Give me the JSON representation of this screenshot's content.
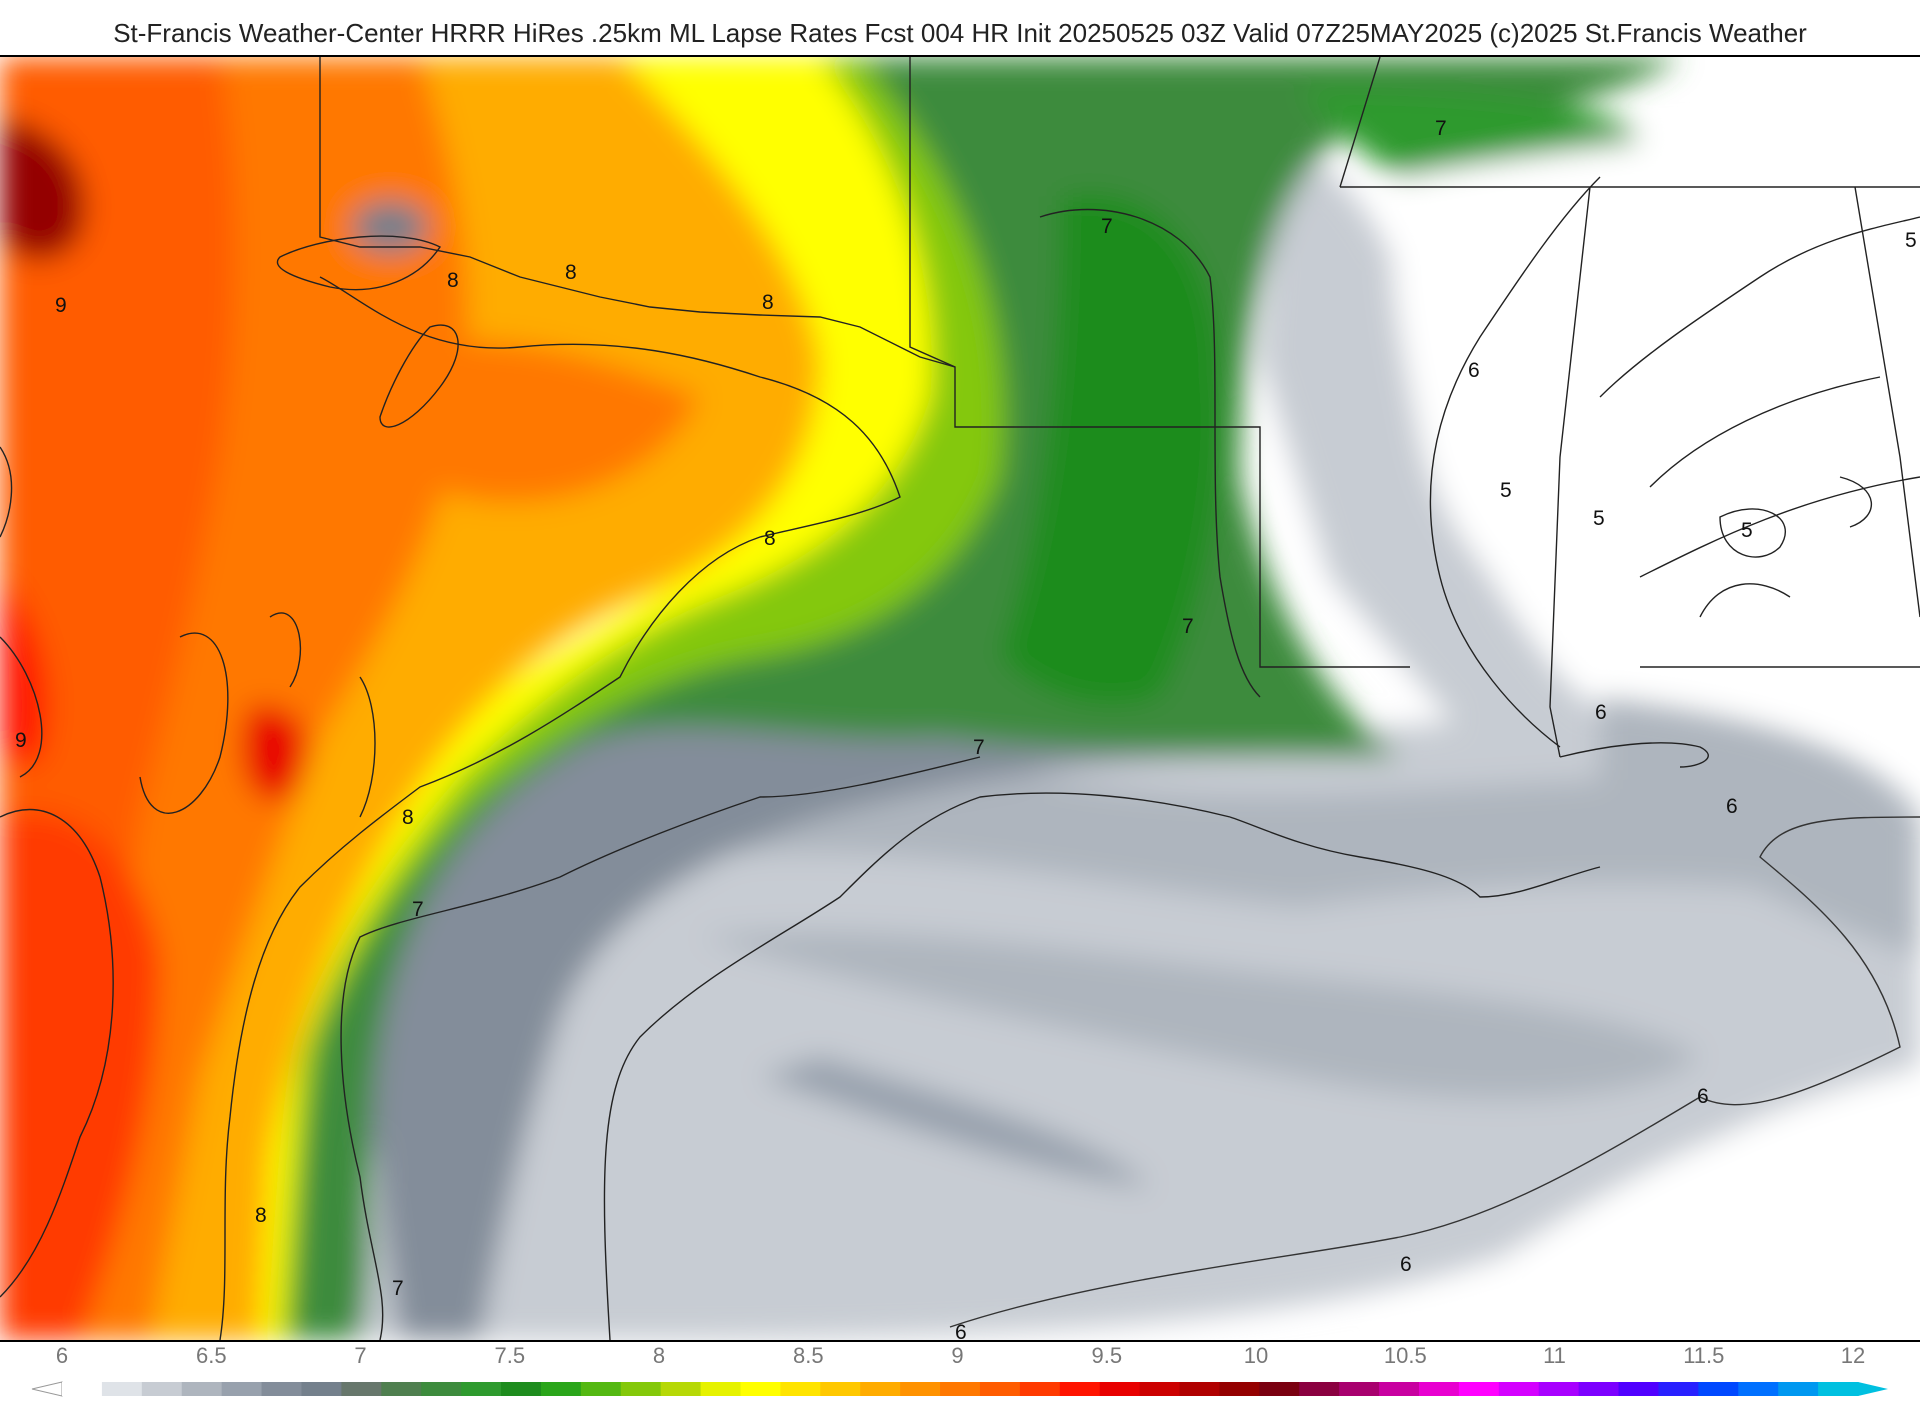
{
  "title": "St-Francis Weather-Center HRRR HiRes .25km ML Lapse Rates  Fcst 004 HR Init 20250525 03Z  Valid 07Z25MAY2025   (c)2025 St.Francis Weather",
  "contour_labels": [
    "9",
    "8",
    "7",
    "6",
    "5"
  ],
  "colorbar": {
    "min": 6,
    "max": 12,
    "ticks": [
      "6",
      "6.5",
      "7",
      "7.5",
      "8",
      "8.5",
      "9",
      "9.5",
      "10",
      "10.5",
      "11",
      "11.5",
      "12"
    ],
    "colors": [
      "#ffffff",
      "#dfe3e8",
      "#c7ccd3",
      "#aeb5be",
      "#98a1ad",
      "#838d9a",
      "#74808c",
      "#67776c",
      "#4f7f4f",
      "#3d8b3d",
      "#2e9a2e",
      "#1e8c1e",
      "#2aa51a",
      "#54b812",
      "#84c80a",
      "#b6d806",
      "#e6f200",
      "#ffff00",
      "#ffe400",
      "#ffc800",
      "#ffac00",
      "#ff9200",
      "#ff7800",
      "#ff5c00",
      "#ff3a00",
      "#ff1400",
      "#e80000",
      "#cc0000",
      "#b00000",
      "#940000",
      "#7a0010",
      "#8a0040",
      "#a8006e",
      "#c800a0",
      "#e800d0",
      "#ff00ff",
      "#d400ff",
      "#a800ff",
      "#7c00ff",
      "#5000ff",
      "#2820ff",
      "#0048ff",
      "#0070ff",
      "#0098f0",
      "#00c0e0"
    ]
  },
  "colors": {
    "coast": "#222222",
    "title_text": "#222222",
    "tick_text": "#777777"
  }
}
